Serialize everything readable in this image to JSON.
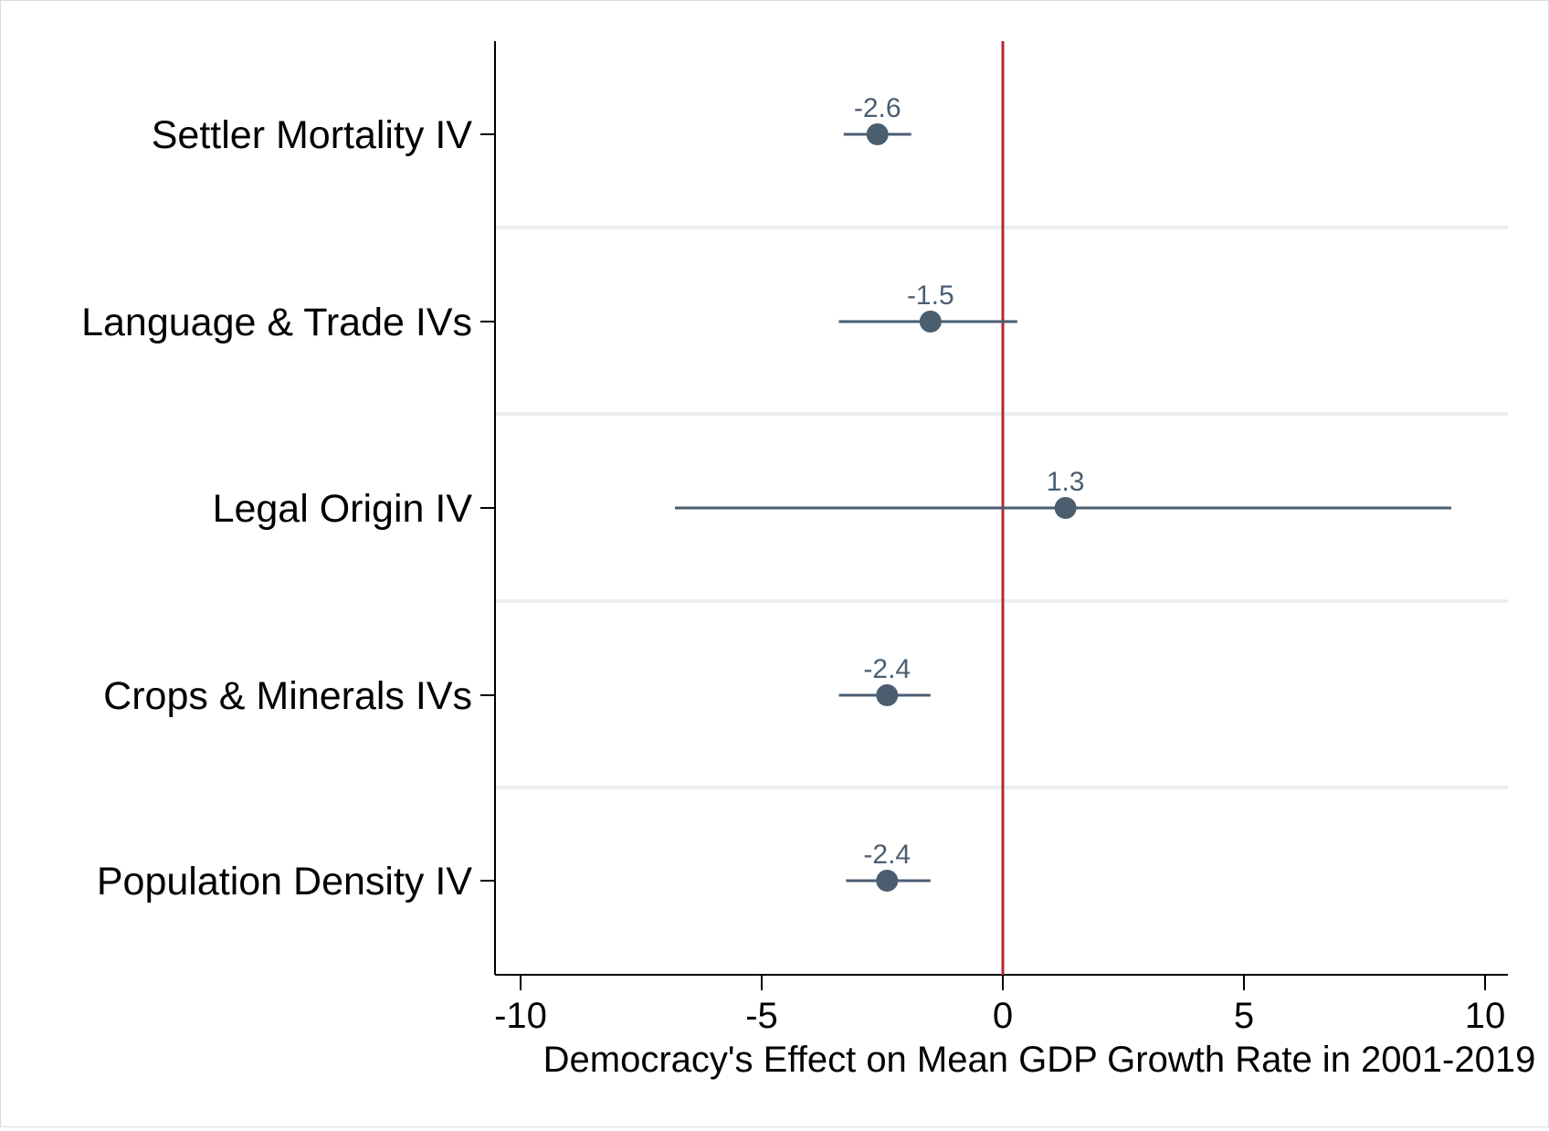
{
  "chart_data": {
    "type": "scatter",
    "subtype": "coefficient-plot",
    "xlabel": "Democracy's Effect on Mean GDP Growth Rate in 2001-2019",
    "ylabel": "",
    "xlim": [
      -10.5,
      10.5
    ],
    "xticks": [
      "-10",
      "-5",
      "0",
      "5",
      "10"
    ],
    "xtick_values": [
      -10,
      -5,
      0,
      5,
      10
    ],
    "reference_line_x": 0,
    "categories": [
      "Settler Mortality IV",
      "Language & Trade IVs",
      "Legal Origin IV",
      "Crops & Minerals IVs",
      "Population Density IV"
    ],
    "series": [
      {
        "estimates": [
          -2.6,
          -1.5,
          1.3,
          -2.4,
          -2.4
        ],
        "labels": [
          "-2.6",
          "-1.5",
          "1.3",
          "-2.4",
          "-2.4"
        ],
        "ci_low": [
          -3.3,
          -3.4,
          -6.8,
          -3.4,
          -3.25
        ],
        "ci_high": [
          -1.9,
          0.3,
          9.3,
          -1.5,
          -1.5
        ]
      }
    ],
    "grid": "horizontal separators between rows",
    "legend": "none",
    "colors": {
      "marker": "#4a5e70",
      "reference_line": "#b8262e",
      "separator": "#eaeef1",
      "axis": "#000000"
    }
  }
}
